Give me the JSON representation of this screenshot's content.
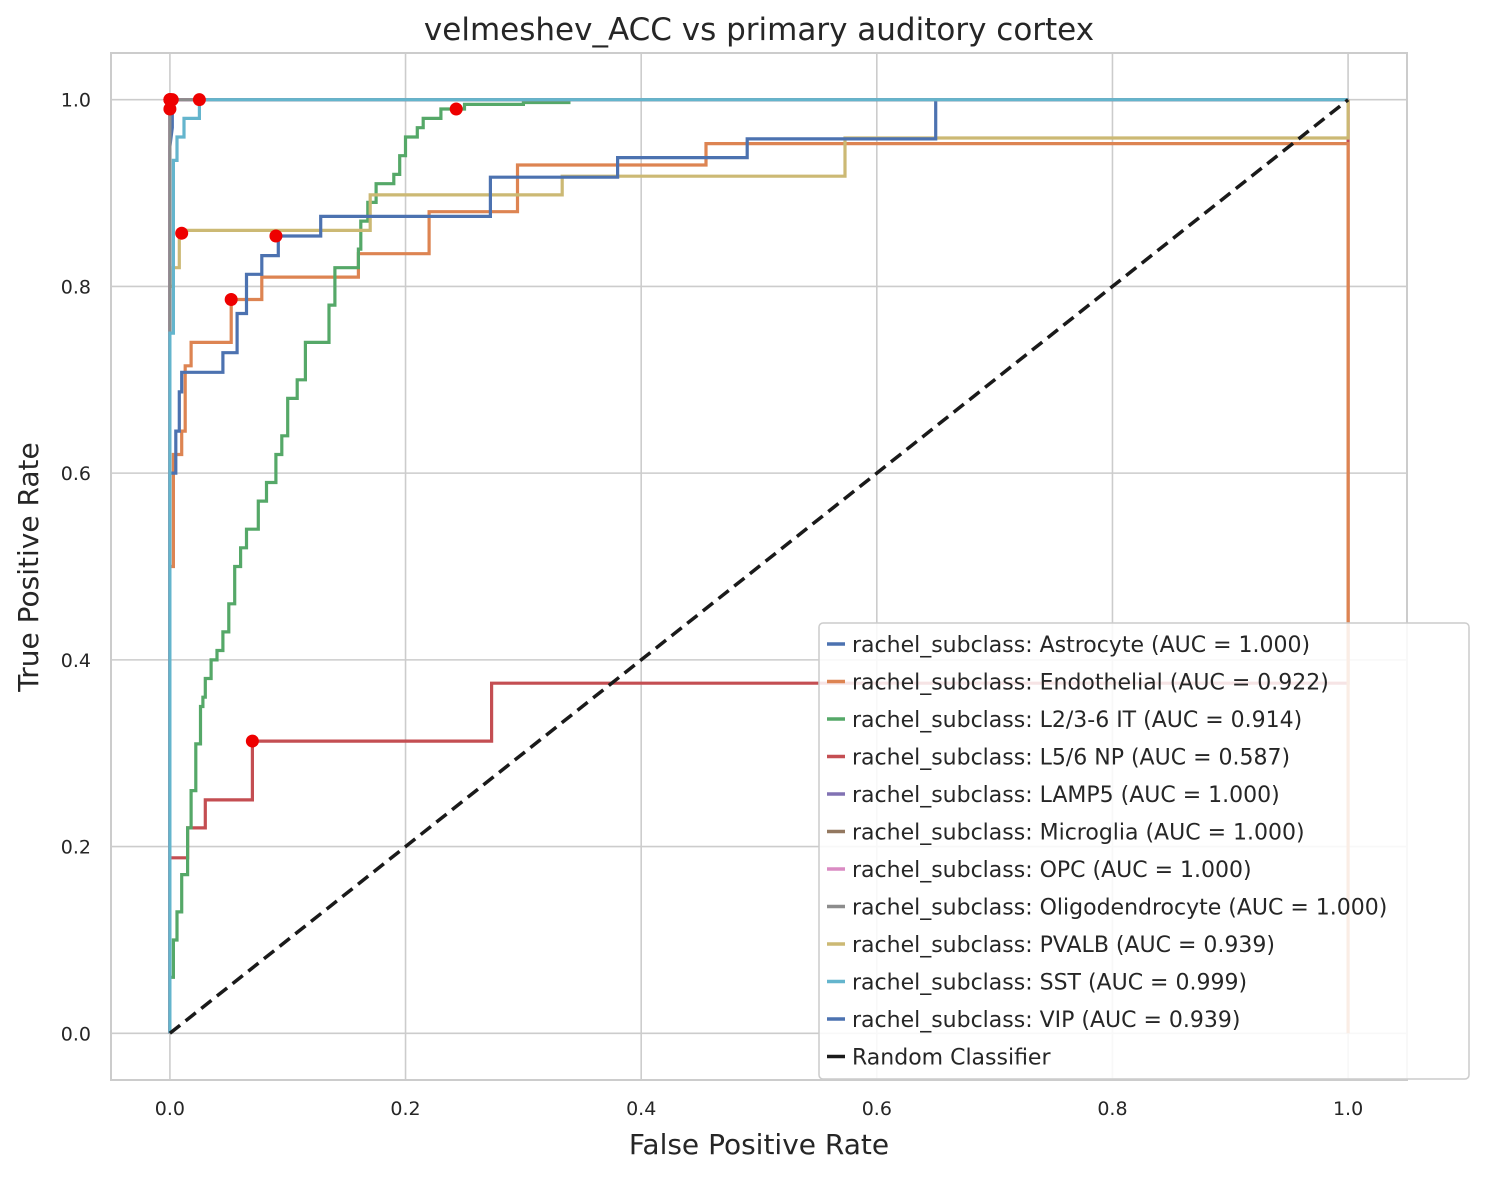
{
  "chart_data": {
    "type": "line",
    "title": "velmeshev_ACC vs primary auditory cortex",
    "xlabel": "False Positive Rate",
    "ylabel": "True Positive Rate",
    "xlim": [
      -0.05,
      1.05
    ],
    "ylim": [
      -0.05,
      1.05
    ],
    "xticks": [
      "0.0",
      "0.2",
      "0.4",
      "0.6",
      "0.8",
      "1.0"
    ],
    "yticks": [
      "0.0",
      "0.2",
      "0.4",
      "0.6",
      "0.8",
      "1.0"
    ],
    "grid": true,
    "legend_position": "lower-right",
    "series": [
      {
        "name": "rachel_subclass: Astrocyte (AUC = 1.000)",
        "color": "#4c72b0",
        "x": [
          0,
          0,
          0.002,
          0.002,
          1
        ],
        "y": [
          0,
          0.95,
          0.97,
          1.0,
          1.0
        ],
        "marker": {
          "x": 0.002,
          "y": 1.0
        }
      },
      {
        "name": "rachel_subclass: Endothelial (AUC = 0.922)",
        "color": "#dd8452",
        "x": [
          0,
          0,
          0.003,
          0.003,
          0.01,
          0.01,
          0.013,
          0.013,
          0.018,
          0.018,
          0.052,
          0.052,
          0.078,
          0.078,
          0.16,
          0.16,
          0.22,
          0.22,
          0.295,
          0.295,
          0.39,
          0.39,
          0.455,
          0.455,
          1.0,
          1.0
        ],
        "y": [
          0,
          0.5,
          0.5,
          0.62,
          0.62,
          0.645,
          0.645,
          0.715,
          0.715,
          0.74,
          0.74,
          0.786,
          0.786,
          0.81,
          0.81,
          0.835,
          0.835,
          0.88,
          0.88,
          0.93,
          0.93,
          0.93,
          0.93,
          0.953,
          0.953,
          0
        ],
        "marker": {
          "x": 0.052,
          "y": 0.786
        }
      },
      {
        "name": "rachel_subclass: L2/3-6 IT (AUC = 0.914)",
        "color": "#55a868",
        "x": [
          0,
          0.003,
          0.003,
          0.006,
          0.006,
          0.01,
          0.01,
          0.015,
          0.015,
          0.018,
          0.018,
          0.022,
          0.022,
          0.026,
          0.026,
          0.028,
          0.028,
          0.03,
          0.03,
          0.035,
          0.035,
          0.04,
          0.04,
          0.045,
          0.045,
          0.05,
          0.05,
          0.055,
          0.055,
          0.06,
          0.06,
          0.065,
          0.065,
          0.07,
          0.07,
          0.075,
          0.075,
          0.082,
          0.082,
          0.09,
          0.09,
          0.095,
          0.095,
          0.1,
          0.1,
          0.108,
          0.108,
          0.115,
          0.115,
          0.125,
          0.125,
          0.135,
          0.135,
          0.14,
          0.14,
          0.16,
          0.16,
          0.162,
          0.162,
          0.168,
          0.168,
          0.175,
          0.175,
          0.185,
          0.185,
          0.19,
          0.19,
          0.195,
          0.195,
          0.2,
          0.2,
          0.21,
          0.21,
          0.215,
          0.215,
          0.225,
          0.225,
          0.23,
          0.23,
          0.235,
          0.235,
          0.24,
          0.24,
          0.25,
          0.25,
          0.27,
          0.27,
          0.3,
          0.3,
          0.34
        ],
        "y": [
          0.06,
          0.06,
          0.1,
          0.1,
          0.13,
          0.13,
          0.17,
          0.17,
          0.22,
          0.22,
          0.26,
          0.26,
          0.31,
          0.31,
          0.35,
          0.35,
          0.36,
          0.36,
          0.38,
          0.38,
          0.4,
          0.4,
          0.41,
          0.41,
          0.43,
          0.43,
          0.46,
          0.46,
          0.5,
          0.5,
          0.52,
          0.52,
          0.54,
          0.54,
          0.54,
          0.54,
          0.57,
          0.57,
          0.59,
          0.59,
          0.62,
          0.62,
          0.64,
          0.64,
          0.68,
          0.68,
          0.7,
          0.7,
          0.74,
          0.74,
          0.74,
          0.74,
          0.78,
          0.78,
          0.82,
          0.82,
          0.84,
          0.84,
          0.87,
          0.87,
          0.89,
          0.89,
          0.91,
          0.91,
          0.91,
          0.91,
          0.92,
          0.92,
          0.94,
          0.94,
          0.96,
          0.96,
          0.97,
          0.97,
          0.98,
          0.98,
          0.98,
          0.98,
          0.99,
          0.99,
          0.99,
          0.99,
          0.99,
          0.99,
          0.995,
          0.995,
          0.995,
          0.995,
          0.997,
          0.997
        ],
        "marker": {
          "x": 0.243,
          "y": 0.99
        }
      },
      {
        "name": "rachel_subclass: L5/6 NP (AUC = 0.587)",
        "color": "#c44e52",
        "x": [
          0,
          0,
          0.015,
          0.015,
          0.03,
          0.03,
          0.07,
          0.07,
          0.273,
          0.273,
          1.0,
          1.0
        ],
        "y": [
          0,
          0.188,
          0.188,
          0.22,
          0.22,
          0.25,
          0.25,
          0.313,
          0.313,
          0.375,
          0.375,
          1.0
        ],
        "marker": {
          "x": 0.07,
          "y": 0.313
        }
      },
      {
        "name": "rachel_subclass: LAMP5 (AUC = 1.000)",
        "color": "#8172b3",
        "x": [
          0,
          0,
          1
        ],
        "y": [
          0,
          1.0,
          1.0
        ],
        "marker": {
          "x": 0,
          "y": 1.0
        }
      },
      {
        "name": "rachel_subclass: Microglia (AUC = 1.000)",
        "color": "#937860",
        "x": [
          0,
          0,
          1
        ],
        "y": [
          0,
          1.0,
          1.0
        ],
        "marker": {
          "x": 0,
          "y": 0.99
        }
      },
      {
        "name": "rachel_subclass: OPC (AUC = 1.000)",
        "color": "#da8bc3",
        "x": [
          0,
          0,
          1
        ],
        "y": [
          0,
          1.0,
          1.0
        ],
        "marker": {
          "x": 0,
          "y": 1.0
        }
      },
      {
        "name": "rachel_subclass: Oligodendrocyte (AUC = 1.000)",
        "color": "#8c8c8c",
        "x": [
          0,
          0,
          1
        ],
        "y": [
          0,
          1.0,
          1.0
        ],
        "marker": {
          "x": 0,
          "y": 1.0
        }
      },
      {
        "name": "rachel_subclass: PVALB (AUC = 0.939)",
        "color": "#ccb974",
        "x": [
          0,
          0,
          0.003,
          0.003,
          0.008,
          0.008,
          0.012,
          0.012,
          0.17,
          0.17,
          0.333,
          0.333,
          0.573,
          0.573,
          1.0,
          1.0
        ],
        "y": [
          0,
          0.8,
          0.8,
          0.82,
          0.82,
          0.86,
          0.86,
          0.86,
          0.86,
          0.898,
          0.898,
          0.918,
          0.918,
          0.959,
          0.959,
          1.0
        ],
        "marker": {
          "x": 0.01,
          "y": 0.857
        }
      },
      {
        "name": "rachel_subclass: SST (AUC = 0.999)",
        "color": "#64b5cd",
        "x": [
          0,
          0,
          0.003,
          0.003,
          0.006,
          0.006,
          0.012,
          0.012,
          0.025,
          0.025,
          1
        ],
        "y": [
          0,
          0.75,
          0.75,
          0.935,
          0.935,
          0.96,
          0.96,
          0.98,
          0.98,
          1.0,
          1.0
        ],
        "marker": {
          "x": 0.025,
          "y": 1.0
        }
      },
      {
        "name": "rachel_subclass: VIP (AUC = 0.939)",
        "color": "#4c72b0",
        "x": [
          0,
          0,
          0.005,
          0.005,
          0.008,
          0.008,
          0.01,
          0.01,
          0.045,
          0.045,
          0.057,
          0.057,
          0.065,
          0.065,
          0.078,
          0.078,
          0.092,
          0.092,
          0.128,
          0.128,
          0.272,
          0.272,
          0.38,
          0.38,
          0.49,
          0.49,
          0.65,
          0.65,
          1.0
        ],
        "y": [
          0,
          0.6,
          0.6,
          0.645,
          0.645,
          0.687,
          0.687,
          0.708,
          0.708,
          0.729,
          0.729,
          0.771,
          0.771,
          0.813,
          0.813,
          0.833,
          0.833,
          0.854,
          0.854,
          0.875,
          0.875,
          0.917,
          0.917,
          0.938,
          0.938,
          0.958,
          0.958,
          1.0,
          1.0
        ],
        "marker": {
          "x": 0.09,
          "y": 0.854
        }
      },
      {
        "name": "Random Classifier",
        "color": "#1a1a1a",
        "dashed": true,
        "x": [
          0,
          1
        ],
        "y": [
          0,
          1
        ]
      }
    ]
  }
}
